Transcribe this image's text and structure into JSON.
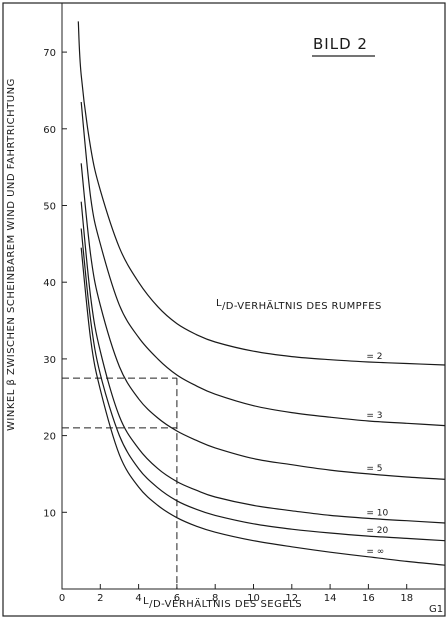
{
  "chart_data": {
    "type": "line",
    "title": "BILD 2",
    "xlabel": "L/D-VERHÄLTNIS DES SEGELS",
    "xlabel_prefix": "L",
    "xlabel_rest": "/D-VERHÄLTNIS DES SEGELS",
    "ylabel": "WINKEL β ZWISCHEN SCHEINBAREM WIND UND FAHRTRICHTUNG",
    "legend_title": "L/D-VERHÄLTNIS DES RUMPFES",
    "legend_title_prefix": "L",
    "legend_title_rest": "/D-VERHÄLTNIS DES RUMPFES",
    "corner_mark": "G1",
    "xlim": [
      0,
      20
    ],
    "ylim": [
      0,
      74
    ],
    "x_ticks": [
      0,
      2,
      4,
      6,
      8,
      10,
      12,
      14,
      16,
      18
    ],
    "x_tick_labels": [
      "0",
      "2",
      "4",
      "6",
      "8",
      "10",
      "12",
      "14",
      "16",
      "18"
    ],
    "y_ticks": [
      10,
      20,
      30,
      40,
      50,
      60,
      70
    ],
    "y_tick_labels": [
      "10",
      "20",
      "30",
      "40",
      "50",
      "60",
      "70"
    ],
    "grid": false,
    "series": [
      {
        "name": "= 2",
        "x": [
          0.85,
          1,
          1.5,
          2,
          3,
          4,
          5,
          6,
          7,
          8,
          10,
          12,
          14,
          16,
          18,
          20
        ],
        "y": [
          74,
          67,
          57.5,
          52,
          44.5,
          40,
          36.8,
          34.6,
          33.2,
          32.2,
          31,
          30.3,
          29.9,
          29.6,
          29.4,
          29.2
        ]
      },
      {
        "name": "= 3",
        "x": [
          1,
          1.5,
          2,
          3,
          4,
          5,
          6,
          7,
          8,
          10,
          12,
          14,
          16,
          18,
          20
        ],
        "y": [
          63.5,
          51,
          45,
          37,
          32.8,
          30,
          27.9,
          26.5,
          25.4,
          23.9,
          23,
          22.4,
          21.9,
          21.6,
          21.3
        ]
      },
      {
        "name": "= 5",
        "x": [
          1,
          1.5,
          2,
          3,
          4,
          5,
          6,
          7,
          8,
          10,
          12,
          14,
          16,
          18,
          20
        ],
        "y": [
          55.5,
          43.5,
          37,
          29,
          24.8,
          22.3,
          20.6,
          19.4,
          18.4,
          17,
          16.2,
          15.5,
          15,
          14.6,
          14.3
        ]
      },
      {
        "name": "= 10",
        "x": [
          1,
          1.5,
          2,
          3,
          4,
          5,
          6,
          7,
          8,
          10,
          12,
          14,
          16,
          18,
          20
        ],
        "y": [
          50.5,
          38,
          31,
          22.5,
          18.3,
          15.7,
          14,
          12.9,
          12,
          10.9,
          10.2,
          9.6,
          9.2,
          8.9,
          8.6
        ]
      },
      {
        "name": "= 20",
        "x": [
          1,
          1.5,
          2,
          3,
          4,
          5,
          6,
          7,
          8,
          10,
          12,
          14,
          16,
          18,
          20
        ],
        "y": [
          47,
          35,
          28,
          20,
          15.7,
          13.2,
          11.5,
          10.4,
          9.6,
          8.5,
          7.8,
          7.3,
          6.9,
          6.6,
          6.3
        ]
      },
      {
        "name": "= ∞",
        "x": [
          1,
          1.5,
          2,
          3,
          4,
          5,
          6,
          7,
          8,
          10,
          12,
          14,
          16,
          18,
          20
        ],
        "y": [
          44.5,
          32.5,
          26,
          17.5,
          13.3,
          10.9,
          9.3,
          8.2,
          7.4,
          6.3,
          5.5,
          4.8,
          4.2,
          3.6,
          3.1
        ]
      }
    ],
    "reference_lines": {
      "x_value": 6,
      "y_values": [
        27.5,
        21
      ]
    }
  }
}
